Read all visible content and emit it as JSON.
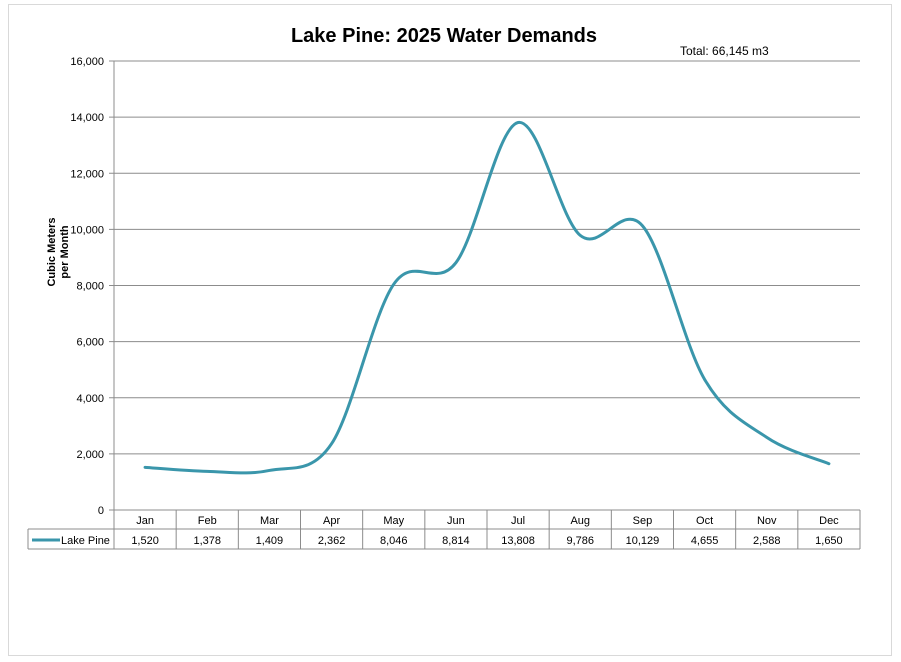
{
  "chart_data": {
    "type": "line",
    "title": "Lake Pine: 2025 Water Demands",
    "annotation": "Total: 66,145 m3",
    "ylabel": "Cubic Meters per Month",
    "ylabel_lines": [
      "Cubic Meters",
      "per Month"
    ],
    "xlabel": "",
    "categories": [
      "Jan",
      "Feb",
      "Mar",
      "Apr",
      "May",
      "Jun",
      "Jul",
      "Aug",
      "Sep",
      "Oct",
      "Nov",
      "Dec"
    ],
    "series": [
      {
        "name": "Lake Pine",
        "values": [
          1520,
          1378,
          1409,
          2362,
          8046,
          8814,
          13808,
          9786,
          10129,
          4655,
          2588,
          1650
        ],
        "labels": [
          "1,520",
          "1,378",
          "1,409",
          "2,362",
          "8,046",
          "8,814",
          "13,808",
          "9,786",
          "10,129",
          "4,655",
          "2,588",
          "1,650"
        ],
        "color": "#3a96ab"
      }
    ],
    "ylim": [
      0,
      16000
    ],
    "yticks": [
      0,
      2000,
      4000,
      6000,
      8000,
      10000,
      12000,
      14000,
      16000
    ],
    "ytick_labels": [
      "0",
      "2,000",
      "4,000",
      "6,000",
      "8,000",
      "10,000",
      "12,000",
      "14,000",
      "16,000"
    ],
    "grid": true,
    "smooth": true,
    "legend": "data-table"
  }
}
